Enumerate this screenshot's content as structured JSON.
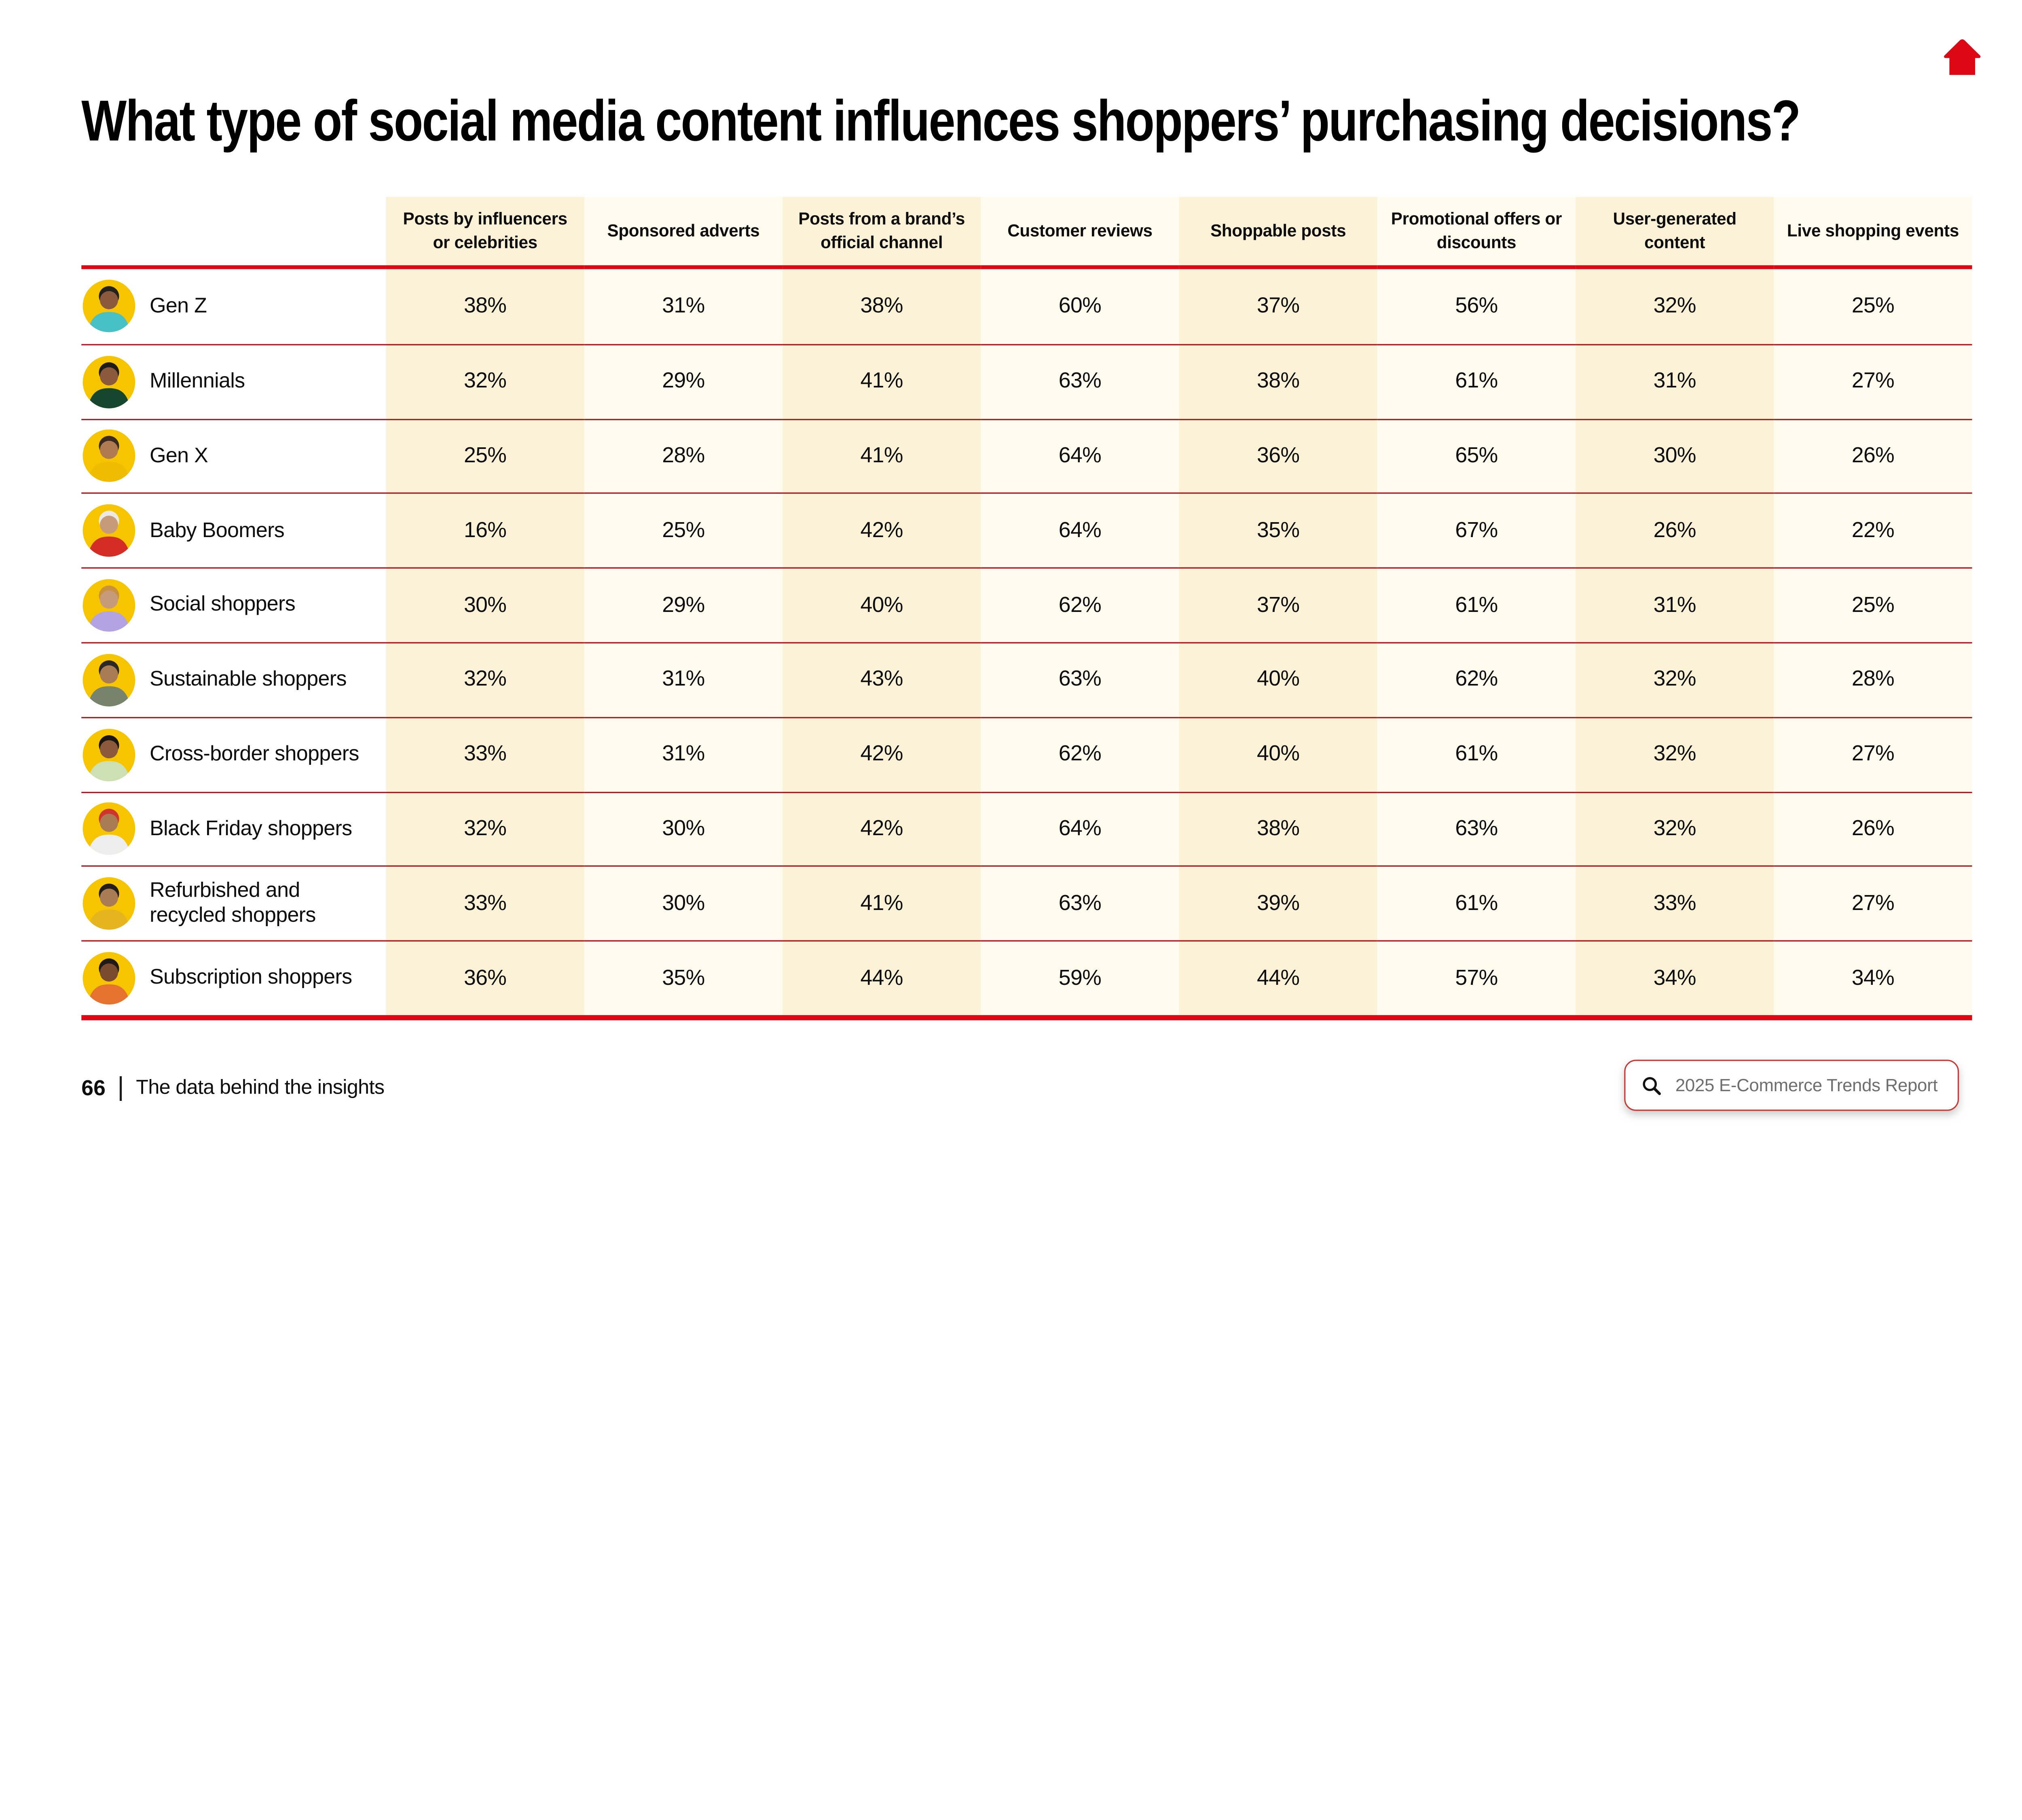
{
  "page": {
    "title": "What type of social media content influences shoppers’ purchasing decisions?",
    "footer": {
      "page_number": "66",
      "divider": "|",
      "label": "The data behind the insights"
    },
    "search": {
      "text": "2025 E-Commerce Trends Report",
      "icon": "magnifier-icon"
    },
    "home_icon": "home-icon"
  },
  "colors": {
    "accent_red": "#DC0914",
    "row_separator_red": "#A81A1F",
    "column_tint_strong": "#FBF2D8",
    "column_tint_light": "#FFFBEF",
    "search_border_red": "#C63A38",
    "search_text_gray": "#6E6E6E",
    "avatar_background": "#F6C500"
  },
  "table": {
    "columns": [
      "Posts by influencers or celebrities",
      "Sponsored adverts",
      "Posts from a brand’s official channel",
      "Customer reviews",
      "Shoppable posts",
      "Promotional offers or discounts",
      "User-generated content",
      "Live shopping events"
    ],
    "rows": [
      {
        "label": "Gen Z",
        "avatar": "avatar-gen-z",
        "avatar_colors": {
          "skin": "#8B5A3C",
          "hair": "#23201E",
          "shirt": "#47C0C6"
        },
        "values": [
          "38%",
          "31%",
          "38%",
          "60%",
          "37%",
          "56%",
          "32%",
          "25%"
        ]
      },
      {
        "label": "Millennials",
        "avatar": "avatar-millennials",
        "avatar_colors": {
          "skin": "#8B5A3C",
          "hair": "#1E1B19",
          "shirt": "#17462F"
        },
        "values": [
          "32%",
          "29%",
          "41%",
          "63%",
          "38%",
          "61%",
          "31%",
          "27%"
        ]
      },
      {
        "label": "Gen X",
        "avatar": "avatar-gen-x",
        "avatar_colors": {
          "skin": "#B07B50",
          "hair": "#3A2A20",
          "shirt": "#F0BC00"
        },
        "values": [
          "25%",
          "28%",
          "41%",
          "64%",
          "36%",
          "65%",
          "30%",
          "26%"
        ]
      },
      {
        "label": "Baby Boomers",
        "avatar": "avatar-baby-boomers",
        "avatar_colors": {
          "skin": "#C79B7A",
          "hair": "#ECE9E2",
          "shirt": "#D42D26"
        },
        "values": [
          "16%",
          "25%",
          "42%",
          "64%",
          "35%",
          "67%",
          "26%",
          "22%"
        ]
      },
      {
        "label": "Social shoppers",
        "avatar": "avatar-social-shoppers",
        "avatar_colors": {
          "skin": "#C79B7A",
          "hair": "#C8913F",
          "shirt": "#B3A3E3"
        },
        "values": [
          "30%",
          "29%",
          "40%",
          "62%",
          "37%",
          "61%",
          "31%",
          "25%"
        ]
      },
      {
        "label": "Sustainable shoppers",
        "avatar": "avatar-sustainable-shoppers",
        "avatar_colors": {
          "skin": "#A97C55",
          "hair": "#2B2724",
          "shirt": "#77836D"
        },
        "values": [
          "32%",
          "31%",
          "43%",
          "63%",
          "40%",
          "62%",
          "32%",
          "28%"
        ]
      },
      {
        "label": "Cross-border shoppers",
        "avatar": "avatar-cross-border-shoppers",
        "avatar_colors": {
          "skin": "#8B5A3C",
          "hair": "#181512",
          "shirt": "#CDE0B4"
        },
        "values": [
          "33%",
          "31%",
          "42%",
          "62%",
          "40%",
          "61%",
          "32%",
          "27%"
        ]
      },
      {
        "label": "Black Friday shoppers",
        "avatar": "avatar-black-friday-shoppers",
        "avatar_colors": {
          "skin": "#A97C55",
          "hair": "#D0342C",
          "shirt": "#EDEDED"
        },
        "values": [
          "32%",
          "30%",
          "42%",
          "64%",
          "38%",
          "63%",
          "32%",
          "26%"
        ]
      },
      {
        "label": "Refurbished and recycled shoppers",
        "avatar": "avatar-refurbished-recycled-shoppers",
        "avatar_colors": {
          "skin": "#A97C55",
          "hair": "#241E1A",
          "shirt": "#E5B41E"
        },
        "values": [
          "33%",
          "30%",
          "41%",
          "63%",
          "39%",
          "61%",
          "33%",
          "27%"
        ]
      },
      {
        "label": "Subscription shoppers",
        "avatar": "avatar-subscription-shoppers",
        "avatar_colors": {
          "skin": "#7A4B2E",
          "hair": "#1F1917",
          "shirt": "#E5732F"
        },
        "values": [
          "36%",
          "35%",
          "44%",
          "59%",
          "44%",
          "57%",
          "34%",
          "34%"
        ]
      }
    ]
  },
  "chart_data": {
    "type": "table",
    "title": "What type of social media content influences shoppers’ purchasing decisions?",
    "columns": [
      "Posts by influencers or celebrities",
      "Sponsored adverts",
      "Posts from a brand’s official channel",
      "Customer reviews",
      "Shoppable posts",
      "Promotional offers or discounts",
      "User-generated content",
      "Live shopping events"
    ],
    "rows": [
      {
        "label": "Gen Z",
        "values": [
          38,
          31,
          38,
          60,
          37,
          56,
          32,
          25
        ]
      },
      {
        "label": "Millennials",
        "values": [
          32,
          29,
          41,
          63,
          38,
          61,
          31,
          27
        ]
      },
      {
        "label": "Gen X",
        "values": [
          25,
          28,
          41,
          64,
          36,
          65,
          30,
          26
        ]
      },
      {
        "label": "Baby Boomers",
        "values": [
          16,
          25,
          42,
          64,
          35,
          67,
          26,
          22
        ]
      },
      {
        "label": "Social shoppers",
        "values": [
          30,
          29,
          40,
          62,
          37,
          61,
          31,
          25
        ]
      },
      {
        "label": "Sustainable shoppers",
        "values": [
          32,
          31,
          43,
          63,
          40,
          62,
          32,
          28
        ]
      },
      {
        "label": "Cross-border shoppers",
        "values": [
          33,
          31,
          42,
          62,
          40,
          61,
          32,
          27
        ]
      },
      {
        "label": "Black Friday shoppers",
        "values": [
          32,
          30,
          42,
          64,
          38,
          63,
          32,
          26
        ]
      },
      {
        "label": "Refurbished and recycled shoppers",
        "values": [
          33,
          30,
          41,
          63,
          39,
          61,
          33,
          27
        ]
      },
      {
        "label": "Subscription shoppers",
        "values": [
          36,
          35,
          44,
          59,
          44,
          57,
          34,
          34
        ]
      }
    ],
    "unit": "%"
  }
}
